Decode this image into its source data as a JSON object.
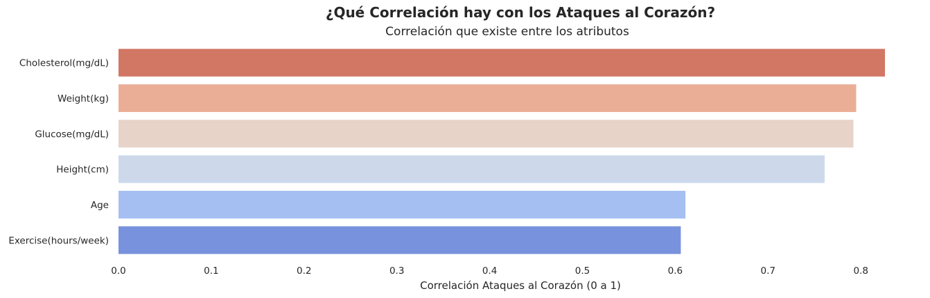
{
  "chart_data": {
    "type": "bar",
    "orientation": "horizontal",
    "title": "¿Qué Correlación hay con los Ataques al Corazón?",
    "subtitle": "Correlación que existe entre los atributos",
    "xlabel": "Correlación Ataques al Corazón (0 a 1)",
    "ylabel": "",
    "categories": [
      "Cholesterol(mg/dL)",
      "Weight(kg)",
      "Glucose(mg/dL)",
      "Height(cm)",
      "Age",
      "Exercise(hours/week)"
    ],
    "values": [
      0.826,
      0.795,
      0.792,
      0.761,
      0.611,
      0.606
    ],
    "colors": [
      "#d27764",
      "#eaae97",
      "#e7d3c8",
      "#cdd9eb",
      "#a5bff3",
      "#7992dd"
    ],
    "xlim": [
      0,
      0.826
    ],
    "xticks": [
      0.0,
      0.1,
      0.2,
      0.3,
      0.4,
      0.5,
      0.6,
      0.7,
      0.8
    ],
    "xtick_labels": [
      "0.0",
      "0.1",
      "0.2",
      "0.3",
      "0.4",
      "0.5",
      "0.6",
      "0.7",
      "0.8"
    ],
    "grid": false,
    "legend": "none"
  }
}
